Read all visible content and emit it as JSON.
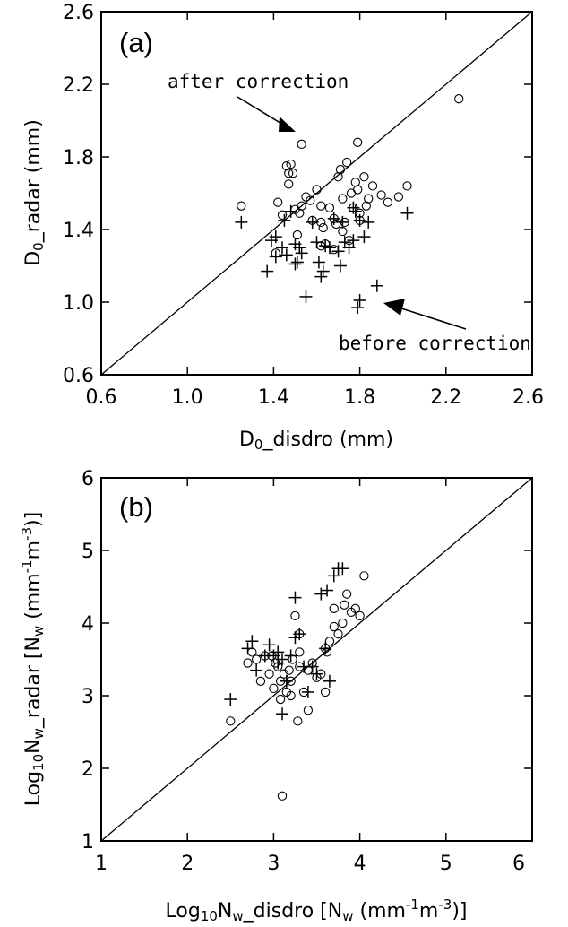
{
  "chart_data": [
    {
      "type": "scatter",
      "panel_label": "(a)",
      "xlabel": "D0_disdro (mm)",
      "ylabel": "D0_radar (mm)",
      "xlim": [
        0.6,
        2.6
      ],
      "ylim": [
        0.6,
        2.6
      ],
      "xticks": [
        "0.6",
        "1.0",
        "1.4",
        "1.8",
        "2.2",
        "2.6"
      ],
      "yticks": [
        "0.6",
        "1.0",
        "1.4",
        "1.8",
        "2.2",
        "2.6"
      ],
      "one_to_one_line": true,
      "annotations": [
        {
          "text": "after correction"
        },
        {
          "text": "before correction"
        }
      ],
      "series": [
        {
          "marker": "circle",
          "x": [
            1.25,
            1.42,
            1.44,
            1.46,
            1.47,
            1.48,
            1.49,
            1.5,
            1.51,
            1.52,
            1.53,
            1.55,
            1.57,
            1.58,
            1.6,
            1.62,
            1.63,
            1.64,
            1.66,
            1.68,
            1.69,
            1.7,
            1.71,
            1.72,
            1.73,
            1.74,
            1.75,
            1.76,
            1.77,
            1.78,
            1.79,
            1.8,
            1.82,
            1.83,
            1.84,
            1.86,
            1.9,
            1.93,
            1.98,
            2.02,
            1.41,
            1.47,
            1.53,
            1.62,
            1.68,
            1.79,
            1.8,
            2.26,
            1.62,
            1.72
          ],
          "y": [
            1.53,
            1.55,
            1.48,
            1.75,
            1.71,
            1.76,
            1.71,
            1.51,
            1.37,
            1.49,
            1.87,
            1.58,
            1.56,
            1.45,
            1.62,
            1.53,
            1.41,
            1.32,
            1.52,
            1.46,
            1.43,
            1.69,
            1.73,
            1.57,
            1.44,
            1.77,
            1.34,
            1.6,
            1.52,
            1.66,
            1.88,
            1.45,
            1.69,
            1.53,
            1.57,
            1.64,
            1.59,
            1.55,
            1.58,
            1.64,
            1.27,
            1.65,
            1.53,
            1.44,
            1.29,
            1.62,
            1.49,
            2.12,
            1.31,
            1.39
          ]
        },
        {
          "marker": "plus",
          "x": [
            1.25,
            1.37,
            1.39,
            1.41,
            1.44,
            1.45,
            1.48,
            1.5,
            1.51,
            1.52,
            1.53,
            1.55,
            1.58,
            1.6,
            1.61,
            1.62,
            1.64,
            1.66,
            1.68,
            1.7,
            1.71,
            1.72,
            1.73,
            1.75,
            1.77,
            1.78,
            1.79,
            1.8,
            1.82,
            1.84,
            1.88,
            2.02,
            1.41,
            1.46,
            1.5,
            1.63,
            1.77,
            1.8
          ],
          "y": [
            1.44,
            1.17,
            1.34,
            1.36,
            1.3,
            1.45,
            1.5,
            1.21,
            1.22,
            1.3,
            1.27,
            1.03,
            1.44,
            1.33,
            1.22,
            1.14,
            1.31,
            1.3,
            1.46,
            1.28,
            1.2,
            1.44,
            1.33,
            1.3,
            1.34,
            1.5,
            0.97,
            1.01,
            1.36,
            1.44,
            1.09,
            1.49,
            1.25,
            1.26,
            1.32,
            1.17,
            1.52,
            1.45
          ]
        }
      ]
    },
    {
      "type": "scatter",
      "panel_label": "(b)",
      "xlabel": "Log10Nw_disdro [Nw (mm-1m-3)]",
      "ylabel": "Log10Nw_radar [Nw (mm-1m-3)]",
      "xlim": [
        1,
        6
      ],
      "ylim": [
        1,
        6
      ],
      "xticks": [
        "1",
        "2",
        "3",
        "4",
        "5",
        "6"
      ],
      "yticks": [
        "1",
        "2",
        "3",
        "4",
        "5",
        "6"
      ],
      "one_to_one_line": true,
      "series": [
        {
          "marker": "circle",
          "x": [
            2.5,
            2.7,
            2.75,
            2.8,
            2.85,
            2.9,
            2.95,
            2.98,
            3.0,
            3.02,
            3.05,
            3.08,
            3.1,
            3.12,
            3.15,
            3.18,
            3.2,
            3.22,
            3.25,
            3.28,
            3.3,
            3.35,
            3.4,
            3.45,
            3.5,
            3.55,
            3.6,
            3.62,
            3.65,
            3.7,
            3.75,
            3.8,
            3.85,
            3.9,
            3.95,
            4.0,
            4.05,
            3.08,
            3.3,
            3.4,
            3.6,
            3.7,
            3.82,
            3.2,
            3.3
          ],
          "y": [
            2.65,
            3.45,
            3.6,
            3.5,
            3.2,
            3.55,
            3.3,
            3.55,
            3.1,
            3.45,
            3.4,
            3.2,
            1.62,
            3.3,
            3.05,
            3.35,
            3.2,
            3.5,
            4.1,
            2.65,
            3.4,
            3.05,
            3.35,
            3.45,
            3.25,
            3.3,
            3.05,
            3.6,
            3.75,
            4.2,
            3.85,
            4.0,
            4.4,
            4.15,
            4.2,
            4.1,
            4.65,
            2.95,
            3.85,
            2.8,
            3.65,
            3.95,
            4.25,
            3.0,
            3.6
          ]
        },
        {
          "marker": "plus",
          "x": [
            2.5,
            2.7,
            2.75,
            2.8,
            2.9,
            2.95,
            3.0,
            3.05,
            3.1,
            3.15,
            3.2,
            3.25,
            3.3,
            3.35,
            3.4,
            3.45,
            3.5,
            3.55,
            3.6,
            3.62,
            3.65,
            3.7,
            3.75,
            3.8,
            3.05,
            3.1,
            3.25
          ],
          "y": [
            2.95,
            3.65,
            3.75,
            3.35,
            3.55,
            3.7,
            3.55,
            3.45,
            2.75,
            3.2,
            3.55,
            4.35,
            3.85,
            3.4,
            3.05,
            3.4,
            3.3,
            4.4,
            3.65,
            4.45,
            3.2,
            4.65,
            4.75,
            4.75,
            3.6,
            3.5,
            3.8
          ]
        }
      ]
    }
  ]
}
